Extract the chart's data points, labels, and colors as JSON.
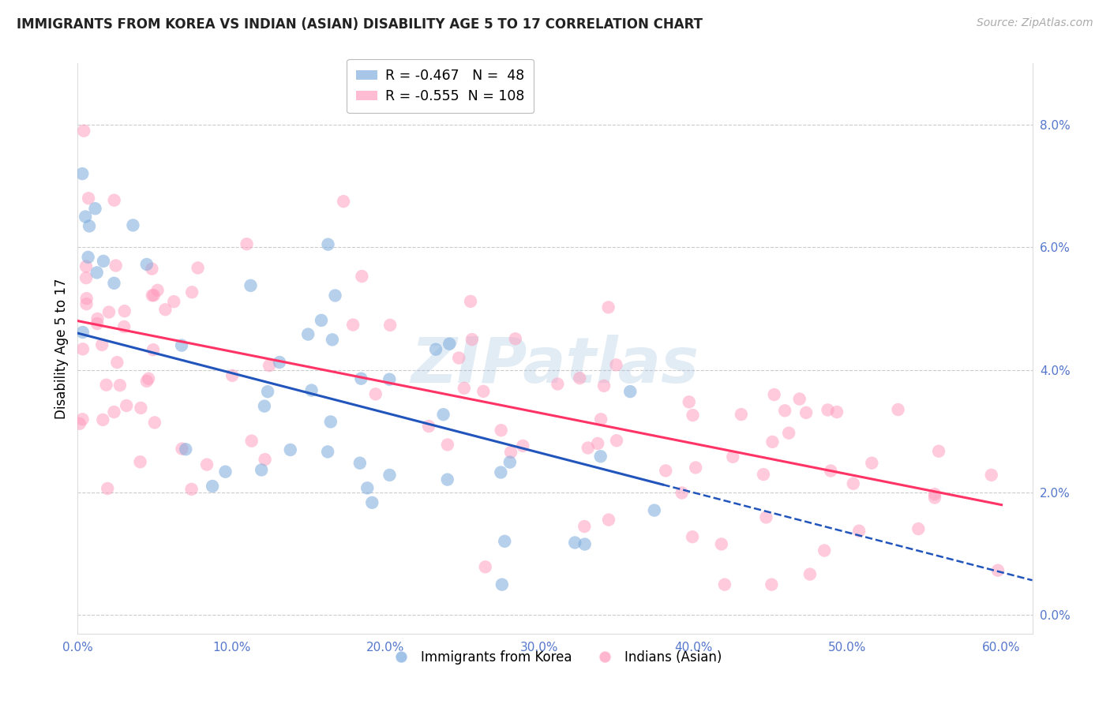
{
  "title": "IMMIGRANTS FROM KOREA VS INDIAN (ASIAN) DISABILITY AGE 5 TO 17 CORRELATION CHART",
  "source": "Source: ZipAtlas.com",
  "ylabel": "Disability Age 5 to 17",
  "xlim": [
    0.0,
    0.62
  ],
  "ylim": [
    -0.003,
    0.09
  ],
  "xticks": [
    0.0,
    0.1,
    0.2,
    0.3,
    0.4,
    0.5,
    0.6
  ],
  "xticklabels": [
    "0.0%",
    "10.0%",
    "20.0%",
    "30.0%",
    "40.0%",
    "50.0%",
    "60.0%"
  ],
  "yticks_right": [
    0.0,
    0.02,
    0.04,
    0.06,
    0.08
  ],
  "yticklabels_right": [
    "0.0%",
    "2.0%",
    "4.0%",
    "6.0%",
    "8.0%"
  ],
  "grid_color": "#cccccc",
  "background_color": "#ffffff",
  "watermark": "ZIPatlas",
  "watermark_color": "#99bbdd",
  "korea_color": "#7aaadd",
  "india_color": "#ff99bb",
  "korea_line_color": "#2255bb",
  "india_line_color": "#ff3366",
  "korea_r": -0.467,
  "korea_n": 48,
  "india_r": -0.555,
  "india_n": 108,
  "legend_label_korea": "Immigrants from Korea",
  "legend_label_india": "Indians (Asian)",
  "tick_color": "#5577cc",
  "title_color": "#222222",
  "source_color": "#aaaaaa",
  "korea_line_intercept": 0.046,
  "korea_line_slope": -0.065,
  "india_line_intercept": 0.048,
  "india_line_slope": -0.05
}
